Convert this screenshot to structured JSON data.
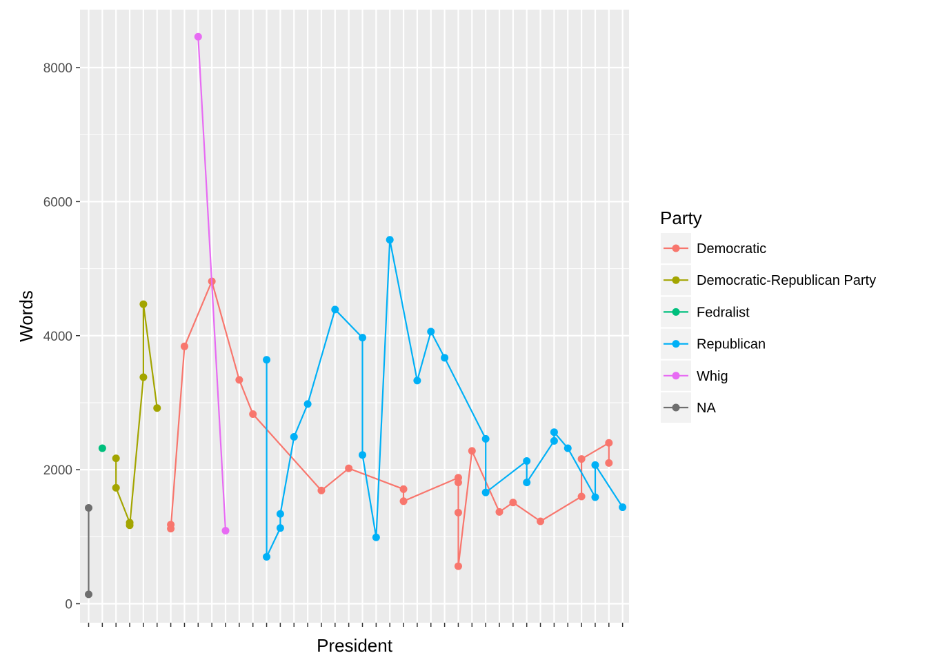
{
  "chart_data": {
    "type": "line",
    "xlabel": "President",
    "ylabel": "Words",
    "ylim": [
      0,
      8800
    ],
    "yticks": [
      "0",
      "2000",
      "4000",
      "6000",
      "8000"
    ],
    "x_tick_labels_shown": false,
    "grid": true,
    "legend": {
      "title": "Party",
      "position": "right",
      "entries": [
        "Democratic",
        "Democratic-Republican Party",
        "Fedralist",
        "Republican",
        "Whig",
        "NA"
      ]
    },
    "series": [
      {
        "name": "Democratic",
        "color": "#F8766D",
        "points": [
          [
            7,
            1180
          ],
          [
            7,
            1120
          ],
          [
            8,
            3840
          ],
          [
            10,
            4810
          ],
          [
            12,
            3340
          ],
          [
            13,
            2830
          ],
          [
            18,
            1690
          ],
          [
            20,
            2020
          ],
          [
            24,
            1710
          ],
          [
            24,
            1530
          ],
          [
            28,
            1880
          ],
          [
            28,
            1810
          ],
          [
            28,
            1360
          ],
          [
            28,
            560
          ],
          [
            29,
            2280
          ],
          [
            31,
            1370
          ],
          [
            32,
            1510
          ],
          [
            34,
            1230
          ],
          [
            37,
            1600
          ],
          [
            37,
            2160
          ],
          [
            39,
            2400
          ],
          [
            39,
            2100
          ]
        ]
      },
      {
        "name": "Democratic-Republican Party",
        "color": "#A3A500",
        "points": [
          [
            3,
            2170
          ],
          [
            3,
            1730
          ],
          [
            4,
            1210
          ],
          [
            4,
            1170
          ],
          [
            5,
            3380
          ],
          [
            5,
            4470
          ],
          [
            6,
            2920
          ]
        ]
      },
      {
        "name": "Fedralist",
        "color": "#00BF7D",
        "points": [
          [
            2,
            2320
          ]
        ]
      },
      {
        "name": "Republican",
        "color": "#00B0F6",
        "points": [
          [
            14,
            3640
          ],
          [
            14,
            700
          ],
          [
            15,
            1130
          ],
          [
            15,
            1340
          ],
          [
            16,
            2490
          ],
          [
            17,
            2980
          ],
          [
            19,
            4390
          ],
          [
            21,
            3970
          ],
          [
            21,
            2220
          ],
          [
            22,
            990
          ],
          [
            23,
            5430
          ],
          [
            25,
            3330
          ],
          [
            26,
            4060
          ],
          [
            27,
            3670
          ],
          [
            30,
            2460
          ],
          [
            30,
            1660
          ],
          [
            33,
            2130
          ],
          [
            33,
            1810
          ],
          [
            35,
            2430
          ],
          [
            35,
            2560
          ],
          [
            36,
            2320
          ],
          [
            38,
            1590
          ],
          [
            38,
            2070
          ],
          [
            40,
            1440
          ]
        ]
      },
      {
        "name": "Whig",
        "color": "#E76BF3",
        "points": [
          [
            9,
            8460
          ],
          [
            11,
            1090
          ]
        ]
      },
      {
        "name": "NA",
        "color": "#6E6E6E",
        "points": [
          [
            1,
            1430
          ],
          [
            1,
            140
          ]
        ]
      }
    ]
  }
}
